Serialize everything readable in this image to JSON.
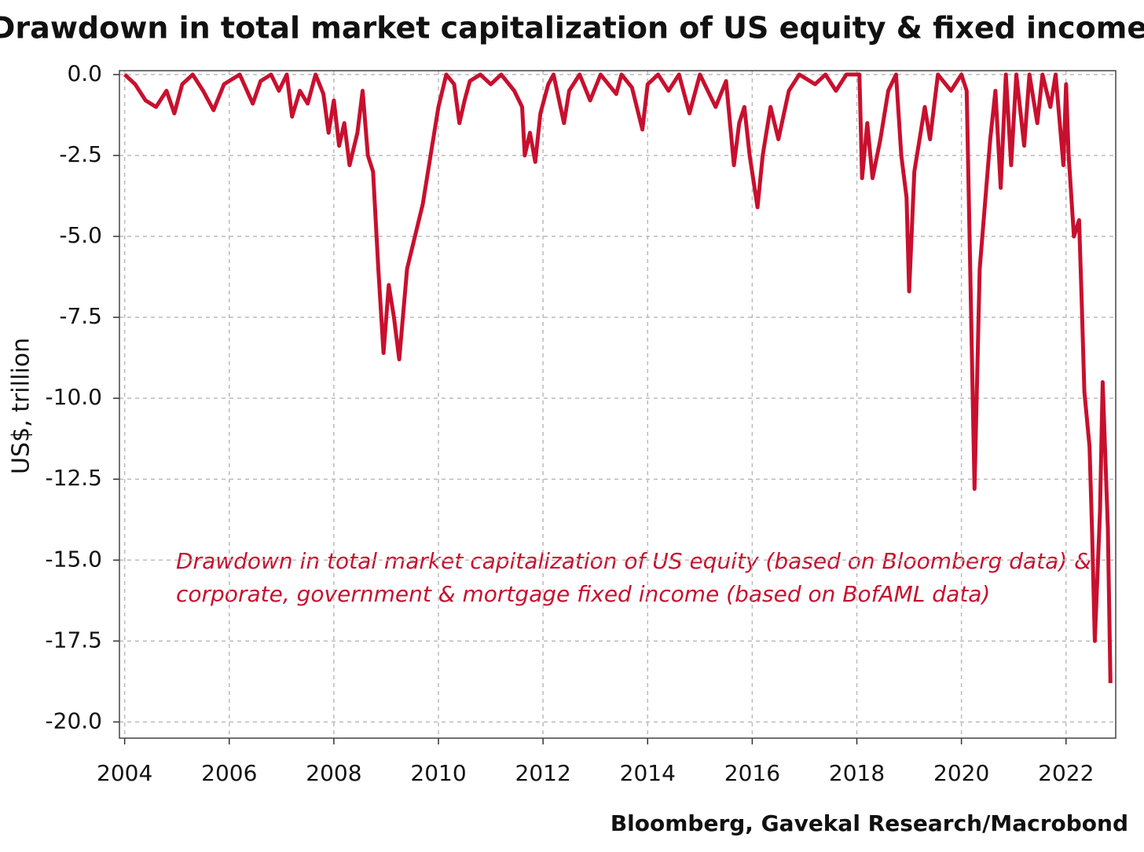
{
  "chart_data": {
    "type": "line",
    "title": "Drawdown in total market capitalization of US equity & fixed income",
    "ylabel": "US$, trillion",
    "source": "Bloomberg, Gavekal Research/Macrobond",
    "annotation": [
      "Drawdown in total market capitalization of US equity (based on Bloomberg data) &",
      "corporate, government & mortgage fixed income (based on BofAML data)"
    ],
    "grid": true,
    "xlim": [
      2003.9,
      2022.95
    ],
    "ylim": [
      -20.5,
      0.12
    ],
    "xticks": [
      2004,
      2006,
      2008,
      2010,
      2012,
      2014,
      2016,
      2018,
      2020,
      2022
    ],
    "yticks": [
      {
        "value": 0,
        "label": "0.0"
      },
      -2.5,
      {
        "value": -5,
        "label": "-5.0"
      },
      -7.5,
      {
        "value": -10,
        "label": "-10.0"
      },
      -12.5,
      {
        "value": -15,
        "label": "-15.0"
      },
      -17.5,
      {
        "value": -20,
        "label": "-20.0"
      }
    ],
    "x": [
      2004.0,
      2004.2,
      2004.4,
      2004.6,
      2004.8,
      2004.95,
      2005.1,
      2005.3,
      2005.5,
      2005.7,
      2005.9,
      2006.2,
      2006.45,
      2006.6,
      2006.8,
      2006.95,
      2007.1,
      2007.2,
      2007.35,
      2007.5,
      2007.65,
      2007.8,
      2007.9,
      2008.0,
      2008.1,
      2008.2,
      2008.3,
      2008.45,
      2008.55,
      2008.65,
      2008.75,
      2008.85,
      2008.95,
      2009.05,
      2009.15,
      2009.25,
      2009.4,
      2009.55,
      2009.7,
      2009.85,
      2010.0,
      2010.15,
      2010.3,
      2010.4,
      2010.5,
      2010.6,
      2010.8,
      2011.0,
      2011.2,
      2011.45,
      2011.6,
      2011.65,
      2011.75,
      2011.85,
      2011.95,
      2012.1,
      2012.2,
      2012.4,
      2012.5,
      2012.7,
      2012.9,
      2013.1,
      2013.4,
      2013.5,
      2013.7,
      2013.9,
      2014.0,
      2014.2,
      2014.4,
      2014.6,
      2014.8,
      2015.0,
      2015.3,
      2015.5,
      2015.65,
      2015.75,
      2015.85,
      2015.95,
      2016.1,
      2016.2,
      2016.35,
      2016.5,
      2016.7,
      2016.9,
      2017.2,
      2017.4,
      2017.6,
      2017.8,
      2018.05,
      2018.1,
      2018.2,
      2018.3,
      2018.45,
      2018.6,
      2018.75,
      2018.85,
      2018.95,
      2019.0,
      2019.1,
      2019.3,
      2019.4,
      2019.55,
      2019.8,
      2020.0,
      2020.1,
      2020.15,
      2020.25,
      2020.35,
      2020.45,
      2020.55,
      2020.65,
      2020.75,
      2020.85,
      2020.95,
      2021.05,
      2021.2,
      2021.3,
      2021.45,
      2021.55,
      2021.7,
      2021.8,
      2021.95,
      2022.0,
      2022.05,
      2022.15,
      2022.25,
      2022.3,
      2022.35,
      2022.45,
      2022.5,
      2022.55,
      2022.6,
      2022.65,
      2022.7,
      2022.8,
      2022.85
    ],
    "series": [
      {
        "name": "Drawdown",
        "color": "#c8102e",
        "values": [
          0,
          -0.3,
          -0.8,
          -1.0,
          -0.5,
          -1.2,
          -0.3,
          0,
          -0.5,
          -1.1,
          -0.3,
          0,
          -0.9,
          -0.2,
          0,
          -0.5,
          0,
          -1.3,
          -0.5,
          -0.9,
          0,
          -0.6,
          -1.8,
          -0.8,
          -2.2,
          -1.5,
          -2.8,
          -1.8,
          -0.5,
          -2.5,
          -3.0,
          -6.0,
          -8.6,
          -6.5,
          -7.5,
          -8.8,
          -6.0,
          -5.0,
          -4.0,
          -2.5,
          -1.0,
          0,
          -0.3,
          -1.5,
          -0.8,
          -0.2,
          0,
          -0.3,
          0,
          -0.5,
          -1.0,
          -2.5,
          -1.8,
          -2.7,
          -1.2,
          -0.3,
          0,
          -1.5,
          -0.5,
          0,
          -0.8,
          0,
          -0.6,
          0,
          -0.4,
          -1.7,
          -0.3,
          0,
          -0.5,
          0,
          -1.2,
          0,
          -1.0,
          -0.2,
          -2.8,
          -1.5,
          -1.0,
          -2.5,
          -4.1,
          -2.5,
          -1.0,
          -2.0,
          -0.5,
          0,
          -0.3,
          0,
          -0.5,
          0,
          0,
          -3.2,
          -1.5,
          -3.2,
          -2.0,
          -0.5,
          0,
          -2.5,
          -3.8,
          -6.7,
          -3.0,
          -1.0,
          -2.0,
          0,
          -0.5,
          0,
          -0.5,
          -4.5,
          -12.8,
          -6.0,
          -4.0,
          -2.0,
          -0.5,
          -3.5,
          0,
          -2.8,
          0,
          -2.2,
          0,
          -1.5,
          0,
          -1.0,
          0,
          -2.8,
          -0.3,
          -2.5,
          -5.0,
          -4.5,
          -7.0,
          -9.8,
          -11.5,
          -14.2,
          -17.5,
          -15.5,
          -13.5,
          -9.5,
          -14.0,
          -18.8
        ]
      }
    ]
  }
}
